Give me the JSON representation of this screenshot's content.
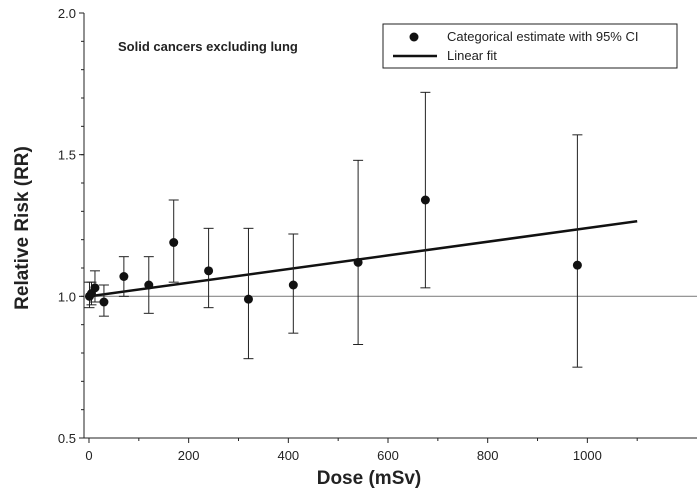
{
  "chart_data": {
    "type": "scatter",
    "annotation": "Solid cancers excluding lung",
    "xlabel": "Dose (mSv)",
    "ylabel": "Relative Risk (RR)",
    "xlim": [
      -10,
      1220
    ],
    "ylim": [
      0.5,
      2.0
    ],
    "x_ticks": [
      0,
      200,
      400,
      600,
      800,
      1000
    ],
    "y_ticks": [
      0.5,
      1.0,
      1.5,
      2.0
    ],
    "y_tick_labels": [
      "0.5",
      "1.0",
      "1.5",
      "2.0"
    ],
    "reference_line_y": 1.0,
    "legend": {
      "position": "top-right",
      "entries": [
        "Categorical estimate with 95% CI",
        "Linear fit"
      ]
    },
    "series": [
      {
        "name": "Categorical estimate with 95% CI",
        "points": [
          {
            "x": 1,
            "y": 1.0,
            "lo": 0.96,
            "hi": 1.05
          },
          {
            "x": 5,
            "y": 1.01,
            "lo": 0.97,
            "hi": 1.05
          },
          {
            "x": 12,
            "y": 1.03,
            "lo": 0.98,
            "hi": 1.09
          },
          {
            "x": 30,
            "y": 0.98,
            "lo": 0.93,
            "hi": 1.04
          },
          {
            "x": 70,
            "y": 1.07,
            "lo": 1.0,
            "hi": 1.14
          },
          {
            "x": 120,
            "y": 1.04,
            "lo": 0.94,
            "hi": 1.14
          },
          {
            "x": 170,
            "y": 1.19,
            "lo": 1.05,
            "hi": 1.34
          },
          {
            "x": 240,
            "y": 1.09,
            "lo": 0.96,
            "hi": 1.24
          },
          {
            "x": 320,
            "y": 0.99,
            "lo": 0.78,
            "hi": 1.24
          },
          {
            "x": 410,
            "y": 1.04,
            "lo": 0.87,
            "hi": 1.22
          },
          {
            "x": 540,
            "y": 1.12,
            "lo": 0.83,
            "hi": 1.48
          },
          {
            "x": 675,
            "y": 1.34,
            "lo": 1.03,
            "hi": 1.72
          },
          {
            "x": 980,
            "y": 1.11,
            "lo": 0.75,
            "hi": 1.57
          }
        ]
      },
      {
        "name": "Linear fit",
        "x": [
          0,
          1100
        ],
        "y": [
          1.0,
          1.265
        ]
      }
    ],
    "colors": {
      "points": "#111111",
      "fit": "#111111",
      "reference": "#888888",
      "axis": "#222222"
    }
  }
}
